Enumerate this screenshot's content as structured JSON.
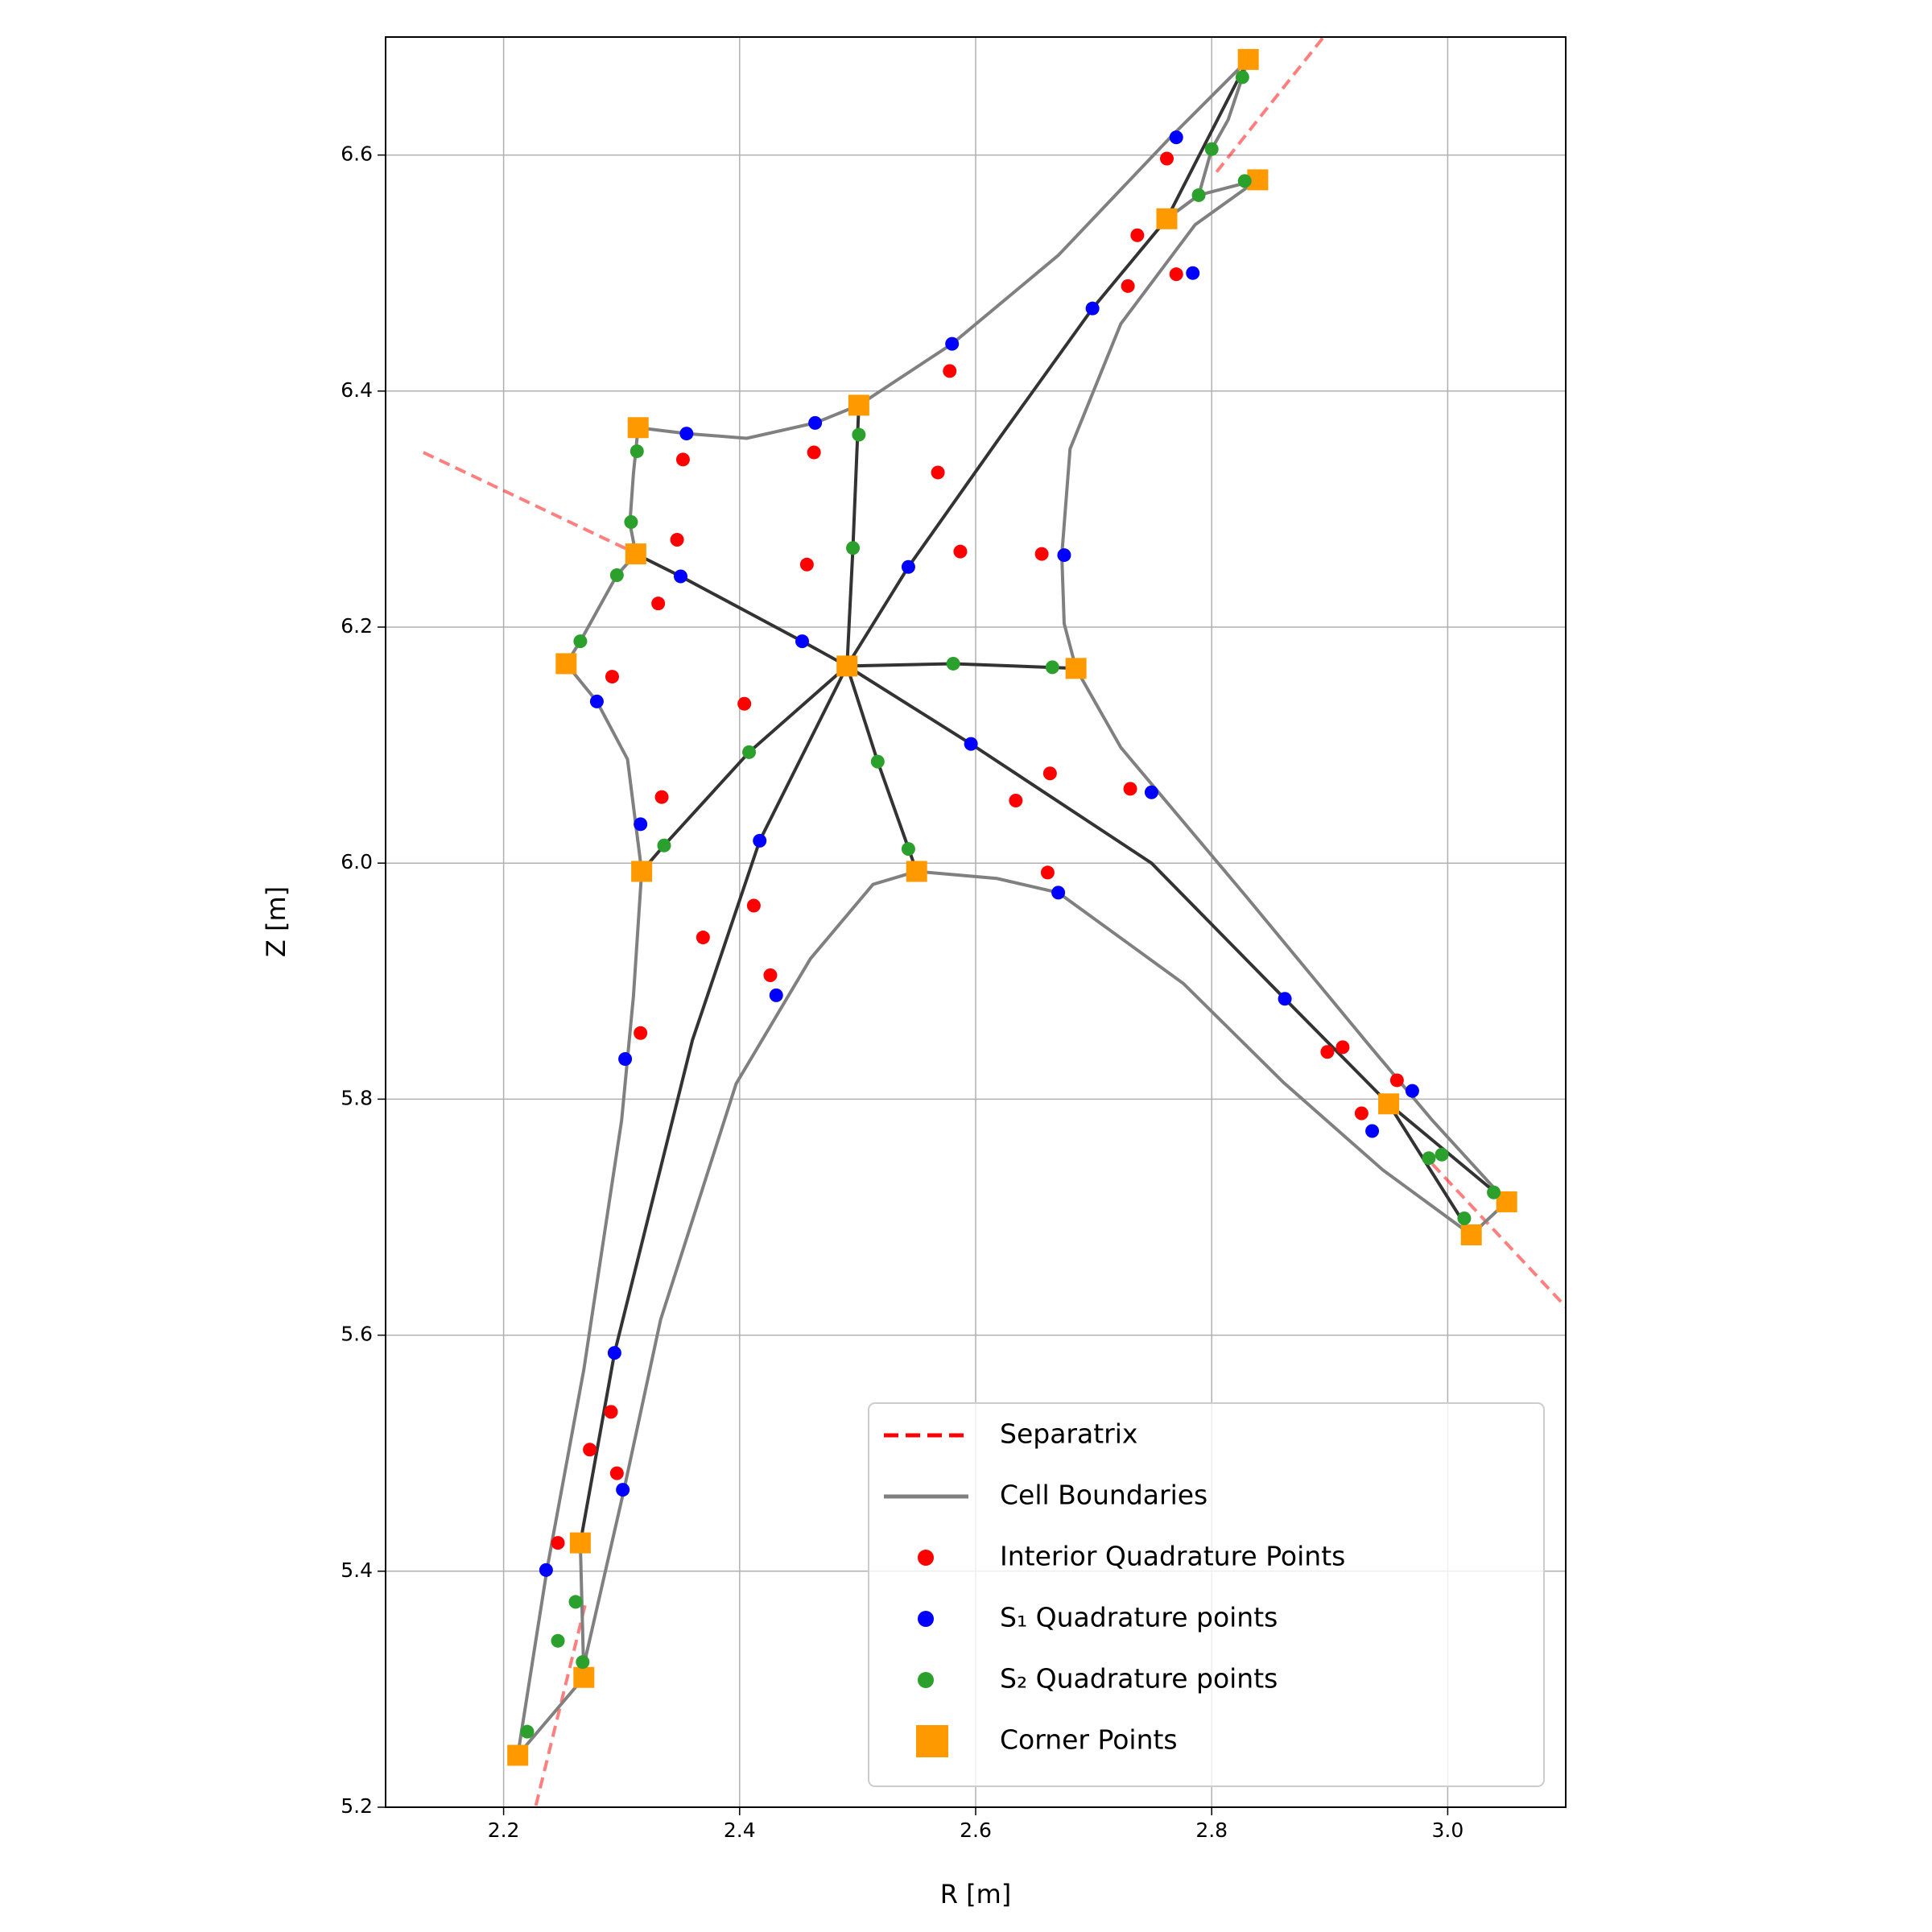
{
  "chart_data": {
    "type": "scatter",
    "xlabel": "R [m]",
    "ylabel": "Z [m]",
    "xlim": [
      2.1,
      3.1
    ],
    "ylim": [
      5.2,
      6.7
    ],
    "xticks": [
      2.2,
      2.4,
      2.6,
      2.8,
      {
        "value": 3,
        "label": "3.0"
      }
    ],
    "yticks": [
      5.2,
      5.4,
      5.6,
      5.8,
      {
        "value": 6,
        "label": "6.0"
      },
      6.2,
      6.4,
      6.6
    ],
    "grid": true,
    "legend": "lower right",
    "series": [
      {
        "name": "Separatrix",
        "color": "#ff0000",
        "alpha": 0.5,
        "linestyle": "dashed",
        "x": [
          2.132,
          2.313,
          null,
          2.894,
          2.802,
          null,
          2.987,
          3.1,
          null,
          2.269,
          2.227
        ],
        "y": [
          6.348,
          6.262,
          null,
          6.699,
          6.583,
          null,
          5.745,
          5.624,
          null,
          5.371,
          5.2
        ]
      },
      {
        "name": "Cell Boundaries",
        "color": "#808080",
        "linestyle": "solid",
        "x": [
          2.314,
          2.355,
          2.406,
          2.464,
          2.501,
          2.58,
          2.67,
          2.765,
          2.831,
          null,
          2.314,
          2.31,
          2.307,
          2.312,
          2.296,
          2.265,
          2.253,
          2.279,
          2.305,
          2.317,
          2.31,
          2.3,
          2.268,
          2.237,
          2.212,
          null,
          2.268,
          2.27,
          2.302,
          2.333,
          2.397,
          2.46,
          2.513,
          2.55,
          2.618,
          2.67,
          2.776,
          2.861,
          2.945,
          3.02,
          null,
          2.839,
          2.786,
          2.723,
          2.68,
          2.673,
          2.675,
          2.685,
          2.723,
          2.829,
          2.934,
          2.987,
          3.05,
          null,
          2.831,
          2.814,
          2.8,
          2.789,
          2.762,
          null,
          2.839,
          2.789,
          2.762,
          null,
          2.212,
          2.268,
          2.265,
          null,
          3.02,
          3.05
        ],
        "y": [
          6.369,
          6.364,
          6.36,
          6.373,
          6.388,
          6.44,
          6.515,
          6.615,
          6.681,
          null,
          6.369,
          6.33,
          6.288,
          6.262,
          6.244,
          6.188,
          6.169,
          6.137,
          6.088,
          5.993,
          5.887,
          5.782,
          5.571,
          5.403,
          5.244,
          null,
          5.31,
          5.329,
          5.469,
          5.613,
          5.813,
          5.919,
          5.982,
          5.993,
          5.987,
          5.975,
          5.898,
          5.814,
          5.74,
          5.685,
          null,
          6.579,
          6.541,
          6.457,
          6.351,
          6.261,
          6.203,
          6.165,
          6.098,
          5.972,
          5.845,
          5.782,
          5.713,
          null,
          6.681,
          6.63,
          6.605,
          6.566,
          6.546,
          null,
          6.579,
          6.566,
          6.546,
          null,
          5.244,
          5.31,
          5.424,
          null,
          5.685,
          5.713
        ]
      },
      {
        "name": "Interior Quadrature Points",
        "color": "#ff0000",
        "marker": "circle",
        "x": [
          2.762,
          2.737,
          2.77,
          2.729,
          2.578,
          2.463,
          2.352,
          2.568,
          2.347,
          2.457,
          2.587,
          2.656,
          2.331,
          2.292,
          2.404,
          2.663,
          2.731,
          2.634,
          2.334,
          2.661,
          2.412,
          2.369,
          2.426,
          2.316,
          2.898,
          2.911,
          2.957,
          2.927,
          2.291,
          2.273,
          2.296,
          2.246
        ],
        "y": [
          6.597,
          6.532,
          6.499,
          6.489,
          6.417,
          6.348,
          6.342,
          6.331,
          6.274,
          6.253,
          6.264,
          6.262,
          6.22,
          6.158,
          6.135,
          6.076,
          6.063,
          6.053,
          6.056,
          5.992,
          5.964,
          5.937,
          5.905,
          5.856,
          5.84,
          5.844,
          5.816,
          5.788,
          5.535,
          5.503,
          5.483,
          5.424
        ]
      },
      {
        "name": "S₁ Quadrature points",
        "color": "#0000ff",
        "marker": "circle",
        "x": [
          2.77,
          2.784,
          2.699,
          2.58,
          2.464,
          2.355,
          2.543,
          2.675,
          2.35,
          2.453,
          2.279,
          2.596,
          2.749,
          2.316,
          2.417,
          2.67,
          2.431,
          2.303,
          2.862,
          2.97,
          2.936,
          2.294,
          2.301,
          2.236
        ],
        "y": [
          6.615,
          6.5,
          6.47,
          6.44,
          6.373,
          6.364,
          6.251,
          6.261,
          6.243,
          6.188,
          6.137,
          6.101,
          6.06,
          6.033,
          6.019,
          5.975,
          5.888,
          5.834,
          5.885,
          5.807,
          5.773,
          5.585,
          5.469,
          5.401
        ]
      },
      {
        "name": "S₂ Quadrature points",
        "color": "#2ca02c",
        "marker": "circle",
        "x": [
          2.826,
          2.8,
          2.789,
          2.828,
          2.313,
          2.308,
          2.296,
          2.265,
          2.501,
          2.496,
          2.581,
          2.665,
          2.408,
          2.517,
          2.336,
          2.543,
          2.984,
          2.995,
          3.039,
          3.014,
          2.261,
          2.246,
          2.267,
          2.22
        ],
        "y": [
          6.666,
          6.605,
          6.566,
          6.578,
          6.349,
          6.289,
          6.244,
          6.188,
          6.363,
          6.267,
          6.169,
          6.166,
          6.094,
          6.086,
          6.015,
          6.012,
          5.75,
          5.753,
          5.721,
          5.699,
          5.374,
          5.341,
          5.323,
          5.264
        ]
      },
      {
        "name": "Corner Points",
        "color": "#ff9900",
        "marker": "square",
        "x": [
          2.831,
          2.839,
          2.762,
          2.501,
          2.314,
          2.312,
          2.253,
          2.491,
          2.685,
          2.317,
          2.55,
          2.95,
          3.05,
          3.02,
          2.265,
          2.268,
          2.212
        ],
        "y": [
          6.681,
          6.579,
          6.546,
          6.388,
          6.369,
          6.262,
          6.169,
          6.167,
          6.165,
          5.993,
          5.993,
          5.796,
          5.713,
          5.685,
          5.424,
          5.31,
          5.244
        ]
      },
      {
        "color": "#333333",
        "linestyle": "solid",
        "x": [
          2.491,
          2.453,
          2.35,
          2.312,
          null,
          2.491,
          2.496,
          2.501,
          null,
          2.491,
          2.543,
          2.62,
          2.699,
          2.762,
          2.831,
          null,
          2.491,
          2.581,
          2.685,
          null,
          2.491,
          2.596,
          2.749,
          2.862,
          2.95,
          3.05,
          null,
          2.491,
          2.517,
          2.55,
          null,
          2.491,
          2.417,
          2.36,
          2.294,
          2.265,
          null,
          2.491,
          2.408,
          2.336,
          2.317,
          null,
          2.95,
          3.02
        ],
        "y": [
          6.167,
          6.188,
          6.243,
          6.262,
          null,
          6.167,
          6.267,
          6.388,
          null,
          6.167,
          6.251,
          6.36,
          6.47,
          6.546,
          6.681,
          null,
          6.167,
          6.169,
          6.165,
          null,
          6.167,
          6.101,
          6.0,
          5.885,
          5.796,
          5.713,
          null,
          6.167,
          6.086,
          5.993,
          null,
          6.167,
          6.019,
          5.85,
          5.585,
          5.424,
          null,
          6.167,
          6.094,
          6.015,
          5.993,
          null,
          5.796,
          5.685
        ]
      }
    ]
  }
}
